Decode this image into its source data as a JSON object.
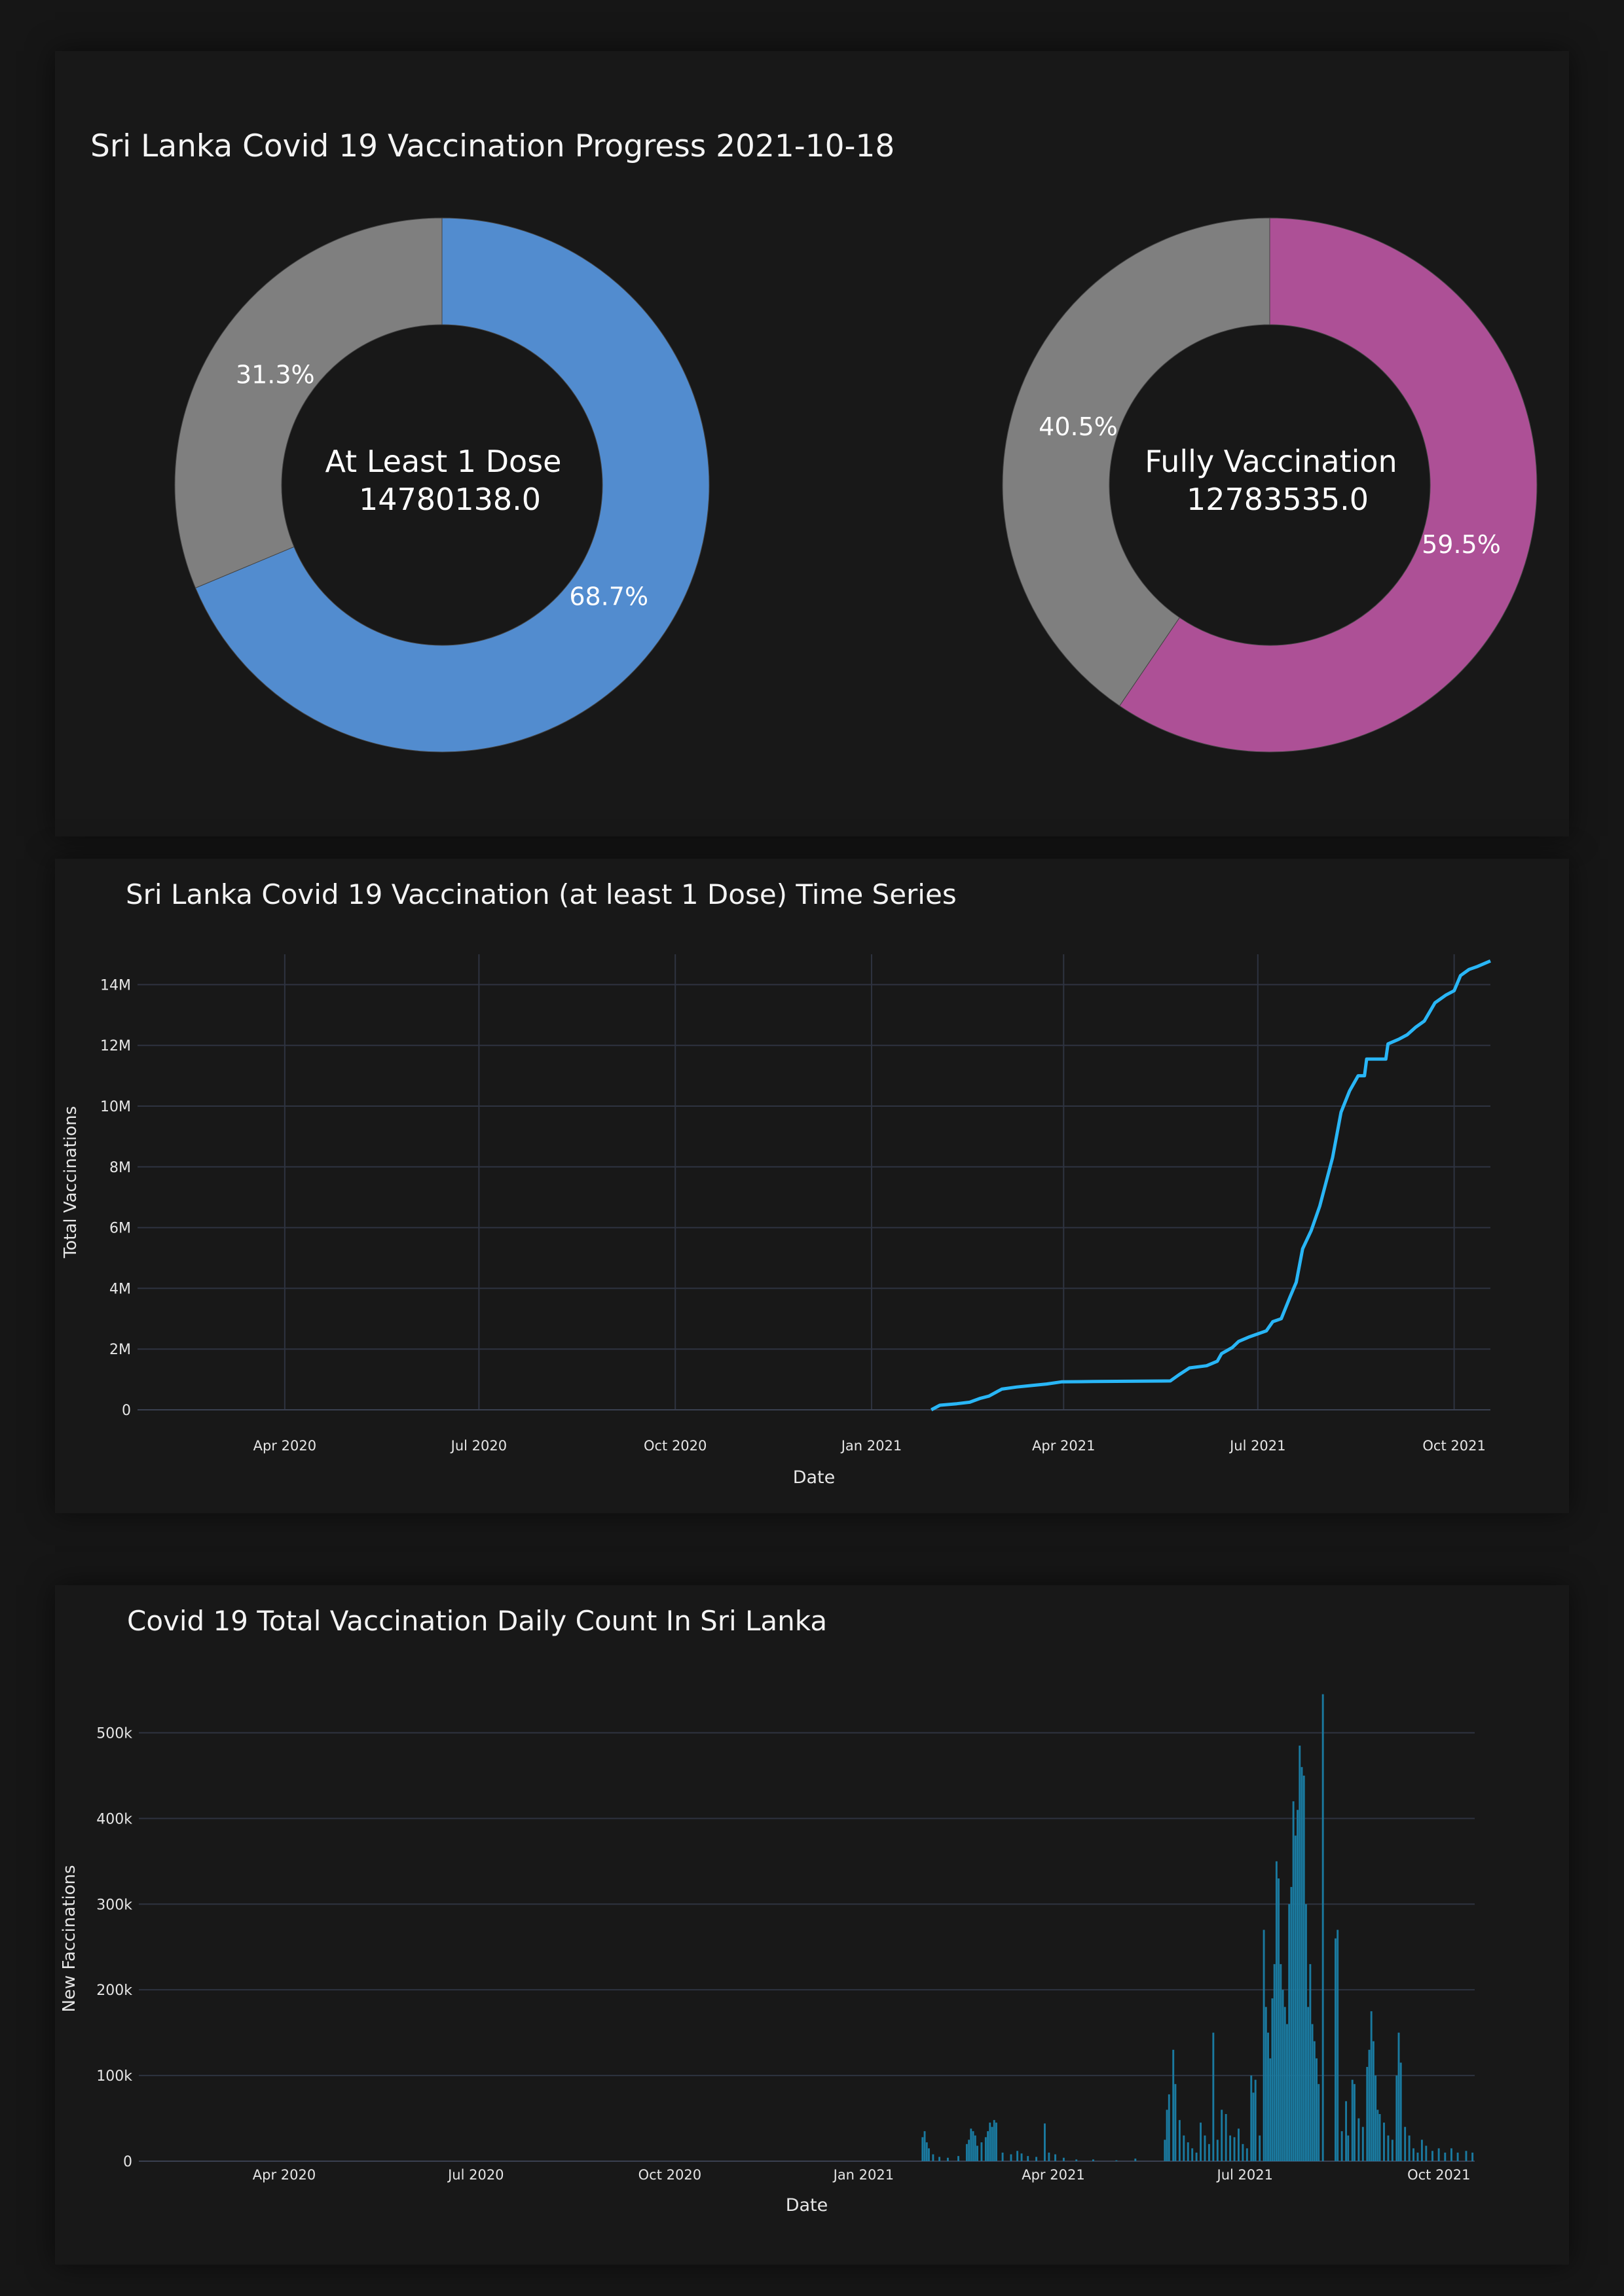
{
  "chart_data": [
    {
      "type": "pie",
      "title": "Sri Lanka Covid 19 Vaccination Progress 2021-10-18",
      "charts": [
        {
          "center_label_line1": "At Least 1 Dose",
          "center_label_line2": "14780138.0",
          "slices": [
            {
              "value": 68.7,
              "label": "68.7%",
              "color": "#528ccf"
            },
            {
              "value": 31.3,
              "label": "31.3%",
              "color": "#7f7f7f"
            }
          ]
        },
        {
          "center_label_line1": "Fully Vaccination",
          "center_label_line2": "12783535.0",
          "slices": [
            {
              "value": 59.5,
              "label": "59.5%",
              "color": "#ad5096"
            },
            {
              "value": 40.5,
              "label": "40.5%",
              "color": "#7f7f7f"
            }
          ]
        }
      ]
    },
    {
      "type": "line",
      "title": "Sri Lanka Covid 19 Vaccination (at least 1 Dose) Time Series",
      "xlabel": "Date",
      "ylabel": "Total Vaccinations",
      "x_range": [
        "2020-01-23",
        "2021-10-18"
      ],
      "ylim": [
        0,
        15000000
      ],
      "x_ticks": [
        {
          "date": "2020-04-01",
          "label": "Apr 2020"
        },
        {
          "date": "2020-07-01",
          "label": "Jul 2020"
        },
        {
          "date": "2020-10-01",
          "label": "Oct 2020"
        },
        {
          "date": "2021-01-01",
          "label": "Jan 2021"
        },
        {
          "date": "2021-04-01",
          "label": "Apr 2021"
        },
        {
          "date": "2021-07-01",
          "label": "Jul 2021"
        },
        {
          "date": "2021-10-01",
          "label": "Oct 2021"
        }
      ],
      "y_ticks": [
        {
          "value": 0,
          "label": "0"
        },
        {
          "value": 2000000,
          "label": "2M"
        },
        {
          "value": 4000000,
          "label": "4M"
        },
        {
          "value": 6000000,
          "label": "6M"
        },
        {
          "value": 8000000,
          "label": "8M"
        },
        {
          "value": 10000000,
          "label": "10M"
        },
        {
          "value": 12000000,
          "label": "12M"
        },
        {
          "value": 14000000,
          "label": "14M"
        }
      ],
      "line_color": "#29b6f6",
      "grid": true,
      "points": [
        [
          "2021-01-29",
          0
        ],
        [
          "2021-02-02",
          150000
        ],
        [
          "2021-02-10",
          200000
        ],
        [
          "2021-02-16",
          250000
        ],
        [
          "2021-02-21",
          380000
        ],
        [
          "2021-02-25",
          450000
        ],
        [
          "2021-03-03",
          680000
        ],
        [
          "2021-03-10",
          750000
        ],
        [
          "2021-03-17",
          800000
        ],
        [
          "2021-03-24",
          850000
        ],
        [
          "2021-03-31",
          920000
        ],
        [
          "2021-04-15",
          930000
        ],
        [
          "2021-05-01",
          940000
        ],
        [
          "2021-05-21",
          950000
        ],
        [
          "2021-05-25",
          1150000
        ],
        [
          "2021-05-30",
          1380000
        ],
        [
          "2021-06-07",
          1450000
        ],
        [
          "2021-06-12",
          1600000
        ],
        [
          "2021-06-14",
          1850000
        ],
        [
          "2021-06-19",
          2050000
        ],
        [
          "2021-06-22",
          2250000
        ],
        [
          "2021-06-27",
          2400000
        ],
        [
          "2021-07-01",
          2500000
        ],
        [
          "2021-07-05",
          2600000
        ],
        [
          "2021-07-08",
          2900000
        ],
        [
          "2021-07-12",
          3000000
        ],
        [
          "2021-07-16",
          3700000
        ],
        [
          "2021-07-19",
          4200000
        ],
        [
          "2021-07-22",
          5300000
        ],
        [
          "2021-07-26",
          5900000
        ],
        [
          "2021-07-30",
          6700000
        ],
        [
          "2021-08-05",
          8300000
        ],
        [
          "2021-08-09",
          9800000
        ],
        [
          "2021-08-13",
          10500000
        ],
        [
          "2021-08-17",
          11000000
        ],
        [
          "2021-08-20",
          11000000
        ],
        [
          "2021-08-21",
          11550000
        ],
        [
          "2021-08-30",
          11550000
        ],
        [
          "2021-08-31",
          12050000
        ],
        [
          "2021-09-05",
          12200000
        ],
        [
          "2021-09-09",
          12350000
        ],
        [
          "2021-09-13",
          12600000
        ],
        [
          "2021-09-17",
          12800000
        ],
        [
          "2021-09-22",
          13400000
        ],
        [
          "2021-09-27",
          13650000
        ],
        [
          "2021-10-01",
          13800000
        ],
        [
          "2021-10-04",
          14300000
        ],
        [
          "2021-10-08",
          14500000
        ],
        [
          "2021-10-12",
          14600000
        ],
        [
          "2021-10-18",
          14780000
        ]
      ]
    },
    {
      "type": "bar",
      "title": "Covid 19 Total Vaccination Daily Count In Sri Lanka",
      "xlabel": "Date",
      "ylabel": "New Faccinations",
      "x_range": [
        "2020-01-23",
        "2021-10-18"
      ],
      "ylim": [
        0,
        550000
      ],
      "x_ticks": [
        {
          "date": "2020-04-01",
          "label": "Apr 2020"
        },
        {
          "date": "2020-07-01",
          "label": "Jul 2020"
        },
        {
          "date": "2020-10-01",
          "label": "Oct 2020"
        },
        {
          "date": "2021-01-01",
          "label": "Jan 2021"
        },
        {
          "date": "2021-04-01",
          "label": "Apr 2021"
        },
        {
          "date": "2021-07-01",
          "label": "Jul 2021"
        },
        {
          "date": "2021-10-01",
          "label": "Oct 2021"
        }
      ],
      "y_ticks": [
        {
          "value": 0,
          "label": "0"
        },
        {
          "value": 100000,
          "label": "100k"
        },
        {
          "value": 200000,
          "label": "200k"
        },
        {
          "value": 300000,
          "label": "300k"
        },
        {
          "value": 400000,
          "label": "400k"
        },
        {
          "value": 500000,
          "label": "500k"
        }
      ],
      "bar_color": "#1a7aa0",
      "grid": true,
      "bars": [
        [
          "2021-01-29",
          28000
        ],
        [
          "2021-01-30",
          35000
        ],
        [
          "2021-01-31",
          22000
        ],
        [
          "2021-02-01",
          15000
        ],
        [
          "2021-02-03",
          8000
        ],
        [
          "2021-02-06",
          5000
        ],
        [
          "2021-02-10",
          4000
        ],
        [
          "2021-02-15",
          6000
        ],
        [
          "2021-02-19",
          20000
        ],
        [
          "2021-02-20",
          25000
        ],
        [
          "2021-02-21",
          38000
        ],
        [
          "2021-02-22",
          35000
        ],
        [
          "2021-02-23",
          30000
        ],
        [
          "2021-02-24",
          18000
        ],
        [
          "2021-02-26",
          22000
        ],
        [
          "2021-02-28",
          28000
        ],
        [
          "2021-03-01",
          35000
        ],
        [
          "2021-03-02",
          45000
        ],
        [
          "2021-03-03",
          40000
        ],
        [
          "2021-03-04",
          48000
        ],
        [
          "2021-03-05",
          45000
        ],
        [
          "2021-03-08",
          10000
        ],
        [
          "2021-03-12",
          8000
        ],
        [
          "2021-03-15",
          12000
        ],
        [
          "2021-03-17",
          9000
        ],
        [
          "2021-03-20",
          6000
        ],
        [
          "2021-03-24",
          5000
        ],
        [
          "2021-03-28",
          44000
        ],
        [
          "2021-03-30",
          10000
        ],
        [
          "2021-04-02",
          8000
        ],
        [
          "2021-04-06",
          4000
        ],
        [
          "2021-04-12",
          2000
        ],
        [
          "2021-04-20",
          2000
        ],
        [
          "2021-05-01",
          1000
        ],
        [
          "2021-05-10",
          3000
        ],
        [
          "2021-05-24",
          25000
        ],
        [
          "2021-05-25",
          60000
        ],
        [
          "2021-05-26",
          78000
        ],
        [
          "2021-05-28",
          130000
        ],
        [
          "2021-05-29",
          90000
        ],
        [
          "2021-05-31",
          48000
        ],
        [
          "2021-06-02",
          30000
        ],
        [
          "2021-06-04",
          22000
        ],
        [
          "2021-06-06",
          15000
        ],
        [
          "2021-06-08",
          10000
        ],
        [
          "2021-06-10",
          45000
        ],
        [
          "2021-06-12",
          30000
        ],
        [
          "2021-06-14",
          20000
        ],
        [
          "2021-06-16",
          150000
        ],
        [
          "2021-06-18",
          25000
        ],
        [
          "2021-06-20",
          60000
        ],
        [
          "2021-06-22",
          55000
        ],
        [
          "2021-06-24",
          30000
        ],
        [
          "2021-06-26",
          28000
        ],
        [
          "2021-06-28",
          38000
        ],
        [
          "2021-06-30",
          20000
        ],
        [
          "2021-07-02",
          15000
        ],
        [
          "2021-07-04",
          100000
        ],
        [
          "2021-07-05",
          80000
        ],
        [
          "2021-07-06",
          95000
        ],
        [
          "2021-07-08",
          30000
        ],
        [
          "2021-07-10",
          270000
        ],
        [
          "2021-07-11",
          180000
        ],
        [
          "2021-07-12",
          150000
        ],
        [
          "2021-07-13",
          120000
        ],
        [
          "2021-07-14",
          190000
        ],
        [
          "2021-07-15",
          230000
        ],
        [
          "2021-07-16",
          350000
        ],
        [
          "2021-07-17",
          330000
        ],
        [
          "2021-07-18",
          230000
        ],
        [
          "2021-07-19",
          200000
        ],
        [
          "2021-07-20",
          180000
        ],
        [
          "2021-07-21",
          160000
        ],
        [
          "2021-07-22",
          300000
        ],
        [
          "2021-07-23",
          320000
        ],
        [
          "2021-07-24",
          420000
        ],
        [
          "2021-07-25",
          380000
        ],
        [
          "2021-07-26",
          410000
        ],
        [
          "2021-07-27",
          485000
        ],
        [
          "2021-07-28",
          460000
        ],
        [
          "2021-07-29",
          450000
        ],
        [
          "2021-07-30",
          300000
        ],
        [
          "2021-07-31",
          180000
        ],
        [
          "2021-08-01",
          230000
        ],
        [
          "2021-08-02",
          160000
        ],
        [
          "2021-08-03",
          140000
        ],
        [
          "2021-08-04",
          120000
        ],
        [
          "2021-08-05",
          90000
        ],
        [
          "2021-08-07",
          545000
        ],
        [
          "2021-08-13",
          260000
        ],
        [
          "2021-08-14",
          270000
        ],
        [
          "2021-08-16",
          35000
        ],
        [
          "2021-08-18",
          70000
        ],
        [
          "2021-08-19",
          30000
        ],
        [
          "2021-08-21",
          95000
        ],
        [
          "2021-08-22",
          90000
        ],
        [
          "2021-08-24",
          50000
        ],
        [
          "2021-08-26",
          40000
        ],
        [
          "2021-08-28",
          110000
        ],
        [
          "2021-08-29",
          130000
        ],
        [
          "2021-08-30",
          175000
        ],
        [
          "2021-08-31",
          140000
        ],
        [
          "2021-09-01",
          100000
        ],
        [
          "2021-09-02",
          60000
        ],
        [
          "2021-09-03",
          55000
        ],
        [
          "2021-09-05",
          45000
        ],
        [
          "2021-09-07",
          30000
        ],
        [
          "2021-09-09",
          25000
        ],
        [
          "2021-09-11",
          100000
        ],
        [
          "2021-09-12",
          150000
        ],
        [
          "2021-09-13",
          115000
        ],
        [
          "2021-09-15",
          40000
        ],
        [
          "2021-09-17",
          30000
        ],
        [
          "2021-09-19",
          15000
        ],
        [
          "2021-09-21",
          10000
        ],
        [
          "2021-09-23",
          25000
        ],
        [
          "2021-09-25",
          18000
        ],
        [
          "2021-09-28",
          12000
        ],
        [
          "2021-10-01",
          15000
        ],
        [
          "2021-10-04",
          10000
        ],
        [
          "2021-10-07",
          15000
        ],
        [
          "2021-10-10",
          10000
        ],
        [
          "2021-10-14",
          12000
        ],
        [
          "2021-10-17",
          10000
        ]
      ]
    }
  ]
}
